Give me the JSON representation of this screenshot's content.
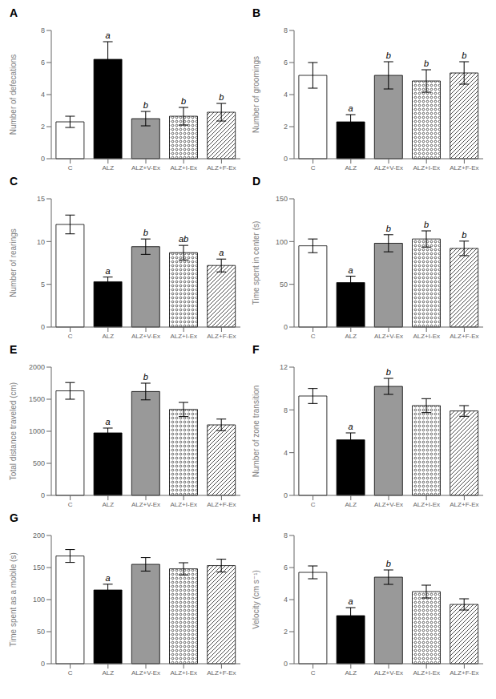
{
  "chart_data": [
    {
      "type": "bar",
      "title": "A",
      "ylabel": "Number of defecations",
      "categories": [
        "C",
        "ALZ",
        "ALZ+V-Ex",
        "ALZ+I-Ex",
        "ALZ+F-Ex"
      ],
      "values": [
        2.3,
        6.2,
        2.5,
        2.65,
        2.9
      ],
      "errors": [
        0.35,
        1.1,
        0.45,
        0.55,
        0.55
      ],
      "colors": [
        "white",
        "black",
        "#999999",
        "white",
        "white"
      ],
      "ylim": [
        0,
        8
      ],
      "yticks": [
        0,
        2,
        4,
        6,
        8
      ],
      "annotations": [
        {
          "x": "ALZ",
          "text": "a"
        },
        {
          "x": "ALZ+V-Ex",
          "text": "b"
        },
        {
          "x": "ALZ+I-Ex",
          "text": "b"
        },
        {
          "x": "ALZ+F-Ex",
          "text": "b"
        }
      ],
      "grid": false
    },
    {
      "type": "bar",
      "title": "B",
      "ylabel": "Number of groomings",
      "categories": [
        "C",
        "ALZ",
        "ALZ+V-Ex",
        "ALZ+I-Ex",
        "ALZ+F-Ex"
      ],
      "values": [
        5.2,
        2.3,
        5.2,
        4.85,
        5.35
      ],
      "errors": [
        0.8,
        0.45,
        0.85,
        0.7,
        0.7
      ],
      "colors": [
        "white",
        "black",
        "#999999",
        "white",
        "white"
      ],
      "ylim": [
        0,
        8
      ],
      "yticks": [
        0,
        2,
        4,
        6,
        8
      ],
      "annotations": [
        {
          "x": "ALZ",
          "text": "a"
        },
        {
          "x": "ALZ+V-Ex",
          "text": "b"
        },
        {
          "x": "ALZ+I-Ex",
          "text": "b"
        },
        {
          "x": "ALZ+F-Ex",
          "text": "b"
        }
      ],
      "grid": false
    },
    {
      "type": "bar",
      "title": "C",
      "ylabel": "Number of rearings",
      "categories": [
        "C",
        "ALZ",
        "ALZ+V-Ex",
        "ALZ+I-Ex",
        "ALZ+F-Ex"
      ],
      "values": [
        12.0,
        5.3,
        9.4,
        8.7,
        7.2
      ],
      "errors": [
        1.1,
        0.55,
        0.9,
        0.85,
        0.75
      ],
      "colors": [
        "white",
        "black",
        "#999999",
        "white",
        "white"
      ],
      "ylim": [
        0,
        15
      ],
      "yticks": [
        0,
        5,
        10,
        15
      ],
      "annotations": [
        {
          "x": "ALZ",
          "text": "a"
        },
        {
          "x": "ALZ+V-Ex",
          "text": "b"
        },
        {
          "x": "ALZ+I-Ex",
          "text": "ab"
        },
        {
          "x": "ALZ+F-Ex",
          "text": "a"
        }
      ],
      "grid": false
    },
    {
      "type": "bar",
      "title": "D",
      "ylabel": "Time spent in center (s)",
      "categories": [
        "C",
        "ALZ",
        "ALZ+V-Ex",
        "ALZ+I-Ex",
        "ALZ+F-Ex"
      ],
      "values": [
        95.0,
        52.0,
        98.0,
        103.0,
        92.0
      ],
      "errors": [
        8.0,
        7.5,
        10.0,
        9.5,
        8.5
      ],
      "colors": [
        "white",
        "black",
        "#999999",
        "white",
        "white"
      ],
      "ylim": [
        0,
        150
      ],
      "yticks": [
        0,
        50,
        100,
        150
      ],
      "annotations": [
        {
          "x": "ALZ",
          "text": "a"
        },
        {
          "x": "ALZ+V-Ex",
          "text": "b"
        },
        {
          "x": "ALZ+I-Ex",
          "text": "b"
        },
        {
          "x": "ALZ+F-Ex",
          "text": "b"
        }
      ],
      "grid": false
    },
    {
      "type": "bar",
      "title": "E",
      "ylabel": "Total distance traveled (cm)",
      "categories": [
        "C",
        "ALZ",
        "ALZ+V-Ex",
        "ALZ+I-Ex",
        "ALZ+F-Ex"
      ],
      "values": [
        1630.0,
        975.0,
        1620.0,
        1340.0,
        1100.0
      ],
      "errors": [
        130.0,
        75.0,
        130.0,
        110.0,
        90.0
      ],
      "colors": [
        "white",
        "black",
        "#999999",
        "white",
        "white"
      ],
      "ylim": [
        0,
        2000
      ],
      "yticks": [
        0,
        500,
        1000,
        1500,
        2000
      ],
      "annotations": [
        {
          "x": "ALZ",
          "text": "a"
        },
        {
          "x": "ALZ+V-Ex",
          "text": "b"
        }
      ],
      "grid": false
    },
    {
      "type": "bar",
      "title": "F",
      "ylabel": "Number of zone transition",
      "categories": [
        "C",
        "ALZ",
        "ALZ+V-Ex",
        "ALZ+I-Ex",
        "ALZ+F-Ex"
      ],
      "values": [
        9.3,
        5.2,
        10.2,
        8.4,
        7.9
      ],
      "errors": [
        0.7,
        0.65,
        0.75,
        0.65,
        0.5
      ],
      "colors": [
        "white",
        "black",
        "#999999",
        "white",
        "white"
      ],
      "ylim": [
        0,
        12
      ],
      "yticks": [
        0,
        4,
        8,
        12
      ],
      "annotations": [
        {
          "x": "ALZ",
          "text": "a"
        },
        {
          "x": "ALZ+V-Ex",
          "text": "b"
        }
      ],
      "grid": false
    },
    {
      "type": "bar",
      "title": "G",
      "ylabel": "Time spent as a mobile (s)",
      "categories": [
        "C",
        "ALZ",
        "ALZ+V-Ex",
        "ALZ+I-Ex",
        "ALZ+F-Ex"
      ],
      "values": [
        168.0,
        115.0,
        155.0,
        148.0,
        153.0
      ],
      "errors": [
        10.0,
        9.0,
        10.5,
        9.5,
        10.0
      ],
      "colors": [
        "white",
        "black",
        "#999999",
        "white",
        "white"
      ],
      "ylim": [
        0,
        200
      ],
      "yticks": [
        0,
        50,
        100,
        150,
        200
      ],
      "annotations": [
        {
          "x": "ALZ",
          "text": "a"
        }
      ],
      "grid": false
    },
    {
      "type": "bar",
      "title": "H",
      "ylabel": "Velocity (cm s⁻¹)",
      "categories": [
        "C",
        "ALZ",
        "ALZ+V-Ex",
        "ALZ+I-Ex",
        "ALZ+F-Ex"
      ],
      "values": [
        5.7,
        3.0,
        5.4,
        4.5,
        3.7
      ],
      "errors": [
        0.4,
        0.5,
        0.45,
        0.4,
        0.35
      ],
      "colors": [
        "white",
        "black",
        "#999999",
        "white",
        "white"
      ],
      "ylim": [
        0,
        8
      ],
      "yticks": [
        0,
        2,
        4,
        6,
        8
      ],
      "annotations": [
        {
          "x": "ALZ",
          "text": "a"
        },
        {
          "x": "ALZ+V-Ex",
          "text": "b"
        }
      ],
      "grid": false
    }
  ]
}
